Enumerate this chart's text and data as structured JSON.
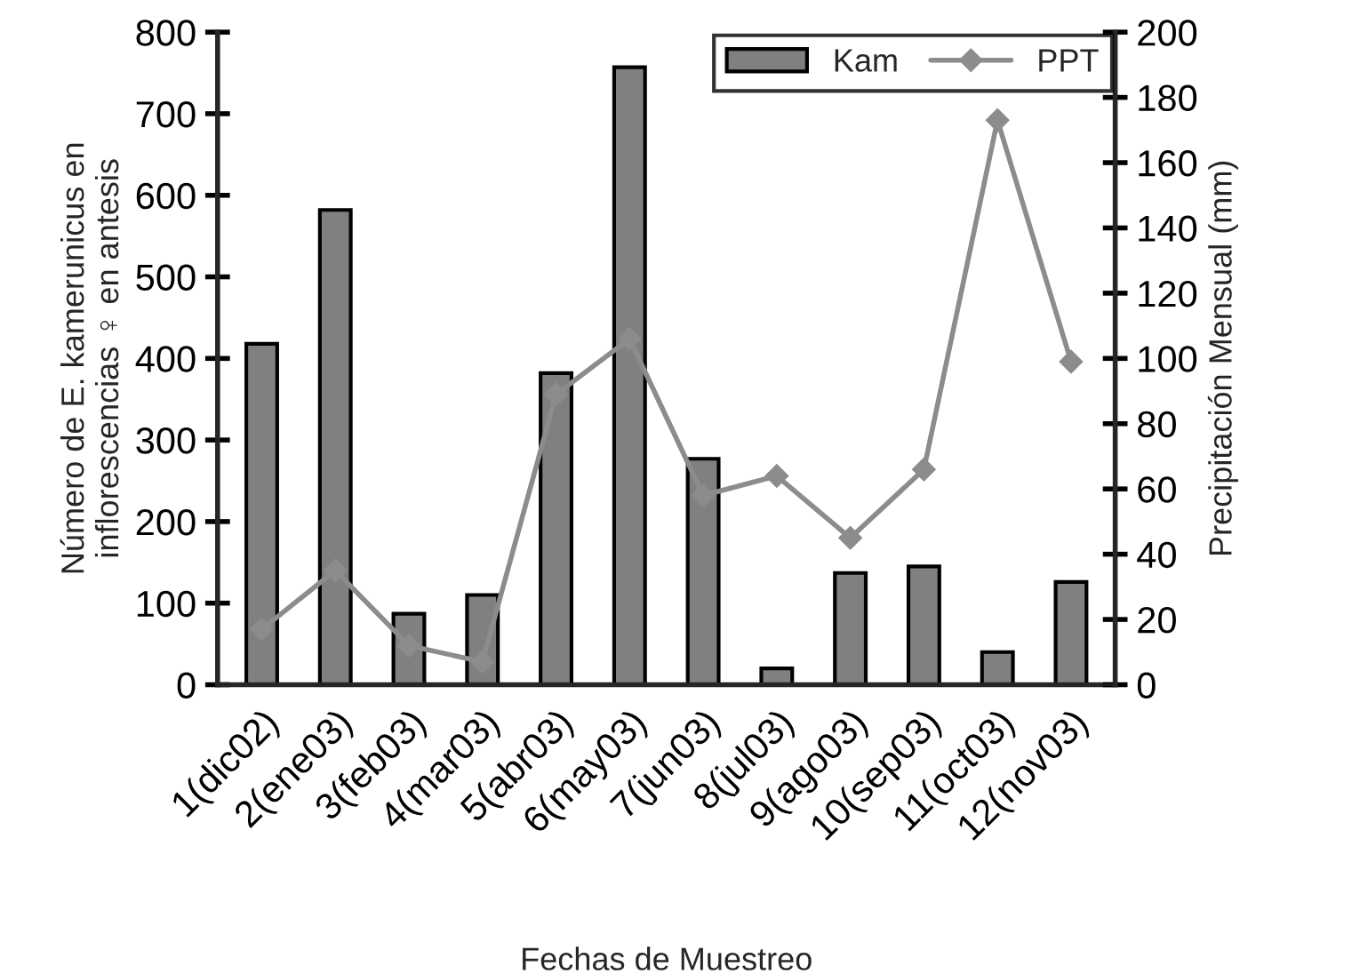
{
  "chart_data": {
    "type": "bar",
    "xlabel": "Fechas de Muestreo",
    "ylabel": "Número de E. kamerunicus en\ninflorescencias ♀ en antesis",
    "y2label": "Precipitación Mensual (mm)",
    "categories": [
      "1(dic02)",
      "2(ene03)",
      "3(feb03)",
      "4(mar03)",
      "5(abr03)",
      "6(may03)",
      "7(jun03)",
      "8(jul03)",
      "9(ago03)",
      "10(sep03)",
      "11(oct03)",
      "12(nov03)"
    ],
    "series": [
      {
        "name": "Kam",
        "color": "#808080",
        "values": [
          418,
          582,
          87,
          110,
          382,
          757,
          277,
          20,
          137,
          145,
          40,
          126
        ]
      },
      {
        "name": "PPT",
        "type": "line",
        "axis": "y2",
        "color": "#8c8c8c",
        "marker": "diamond",
        "line_style": "solid",
        "values": [
          17,
          35,
          12,
          7,
          89,
          106,
          58,
          64,
          45,
          66,
          173,
          99
        ]
      }
    ],
    "ylim": [
      0,
      800
    ],
    "yticks": [
      0,
      100,
      200,
      300,
      400,
      500,
      600,
      700,
      800
    ],
    "y2lim": [
      0,
      200
    ],
    "y2ticks": [
      0,
      20,
      40,
      60,
      80,
      100,
      120,
      140,
      160,
      180,
      200
    ],
    "grid": false,
    "legend": "top right"
  }
}
